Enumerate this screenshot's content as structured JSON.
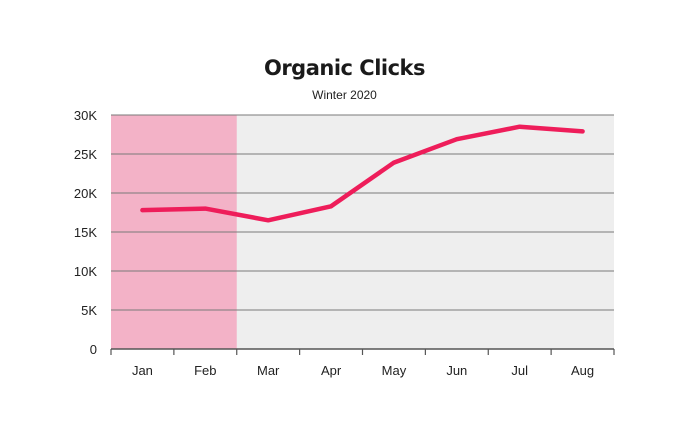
{
  "chart_data": {
    "type": "line",
    "title": "Organic Clicks",
    "subtitle": "Winter 2020",
    "xlabel": "",
    "ylabel": "",
    "categories": [
      "Jan",
      "Feb",
      "Mar",
      "Apr",
      "May",
      "Jun",
      "Jul",
      "Aug"
    ],
    "series": [
      {
        "values": [
          17800,
          18000,
          16500,
          18300,
          23900,
          26900,
          28500,
          27900
        ],
        "color": "#ee1d5a"
      }
    ],
    "ylim": [
      0,
      30000
    ],
    "yticks": [
      0,
      5000,
      10000,
      15000,
      20000,
      25000,
      30000
    ],
    "ytick_labels": [
      "0",
      "5K",
      "10K",
      "15K",
      "20K",
      "25K",
      "30K"
    ],
    "grid": true,
    "highlight": {
      "categories": [
        "Jan",
        "Feb"
      ],
      "color": "#f3b2c7"
    },
    "plot_background": "#eeeeee",
    "gridline_color": "#7a7a7a"
  }
}
